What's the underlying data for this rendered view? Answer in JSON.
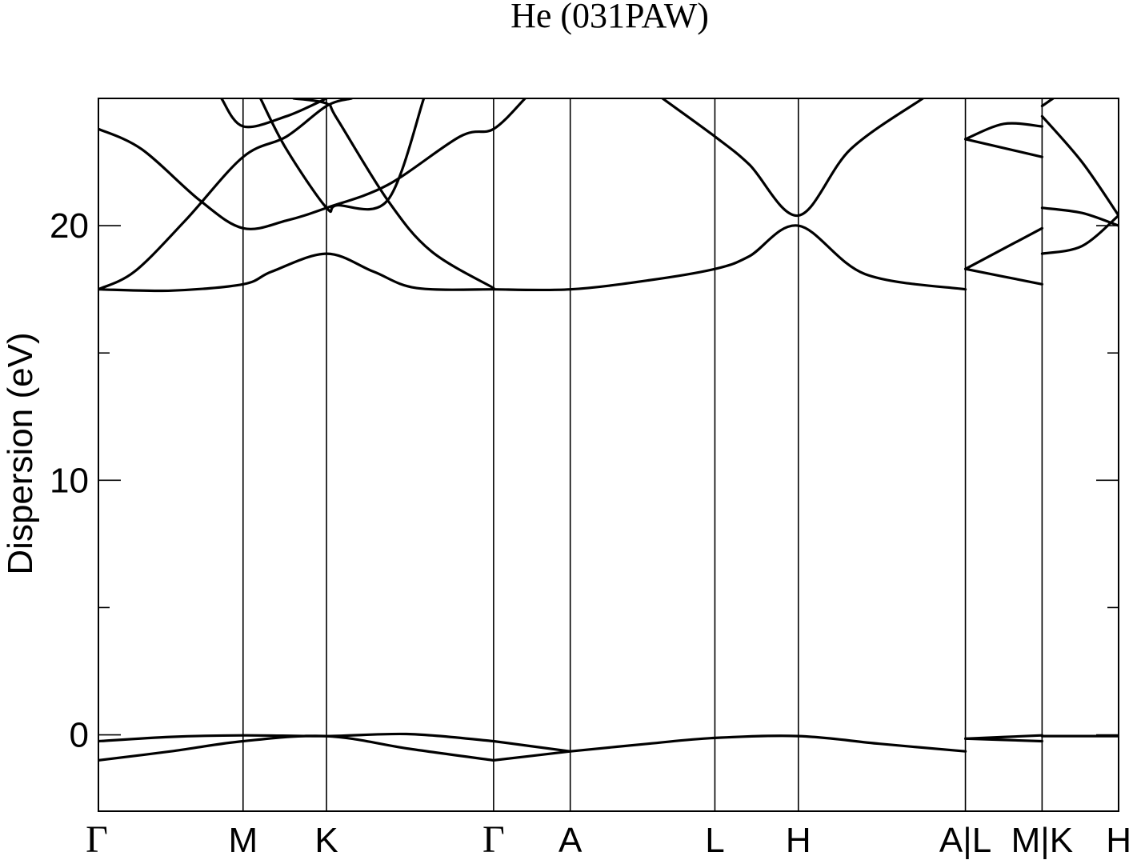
{
  "chart_data": {
    "type": "line",
    "title": "He (031PAW)",
    "ylabel": "Dispersion (eV)",
    "xlabel": "",
    "ylim": [
      -3,
      25
    ],
    "yticks_major": [
      0,
      10,
      20
    ],
    "yticks_minor": [
      5,
      15
    ],
    "grid": false,
    "kpoint_labels": [
      "Γ",
      "M",
      "K",
      "Γ",
      "A",
      "L",
      "H",
      "A|L",
      "M|K",
      "H"
    ],
    "kpoint_positions": [
      0,
      1.0,
      1.577,
      2.732,
      3.262,
      4.262,
      4.839,
      5.994,
      6.524,
      7.053
    ],
    "series": [
      {
        "segment": "Γ-M-K-Γ",
        "points": [
          [
            0,
            -1.0
          ],
          [
            0.5,
            -0.65
          ],
          [
            1.0,
            -0.25
          ],
          [
            1.577,
            -0.05
          ],
          [
            2.15,
            -0.55
          ],
          [
            2.732,
            -1.0
          ]
        ]
      },
      {
        "segment": "Γ-M-K-Γ",
        "points": [
          [
            0,
            -0.25
          ],
          [
            0.5,
            -0.08
          ],
          [
            1.0,
            -0.02
          ],
          [
            1.577,
            -0.05
          ],
          [
            2.15,
            0.03
          ],
          [
            2.732,
            -0.25
          ]
        ]
      },
      {
        "segment": "Γ-M-K-Γ",
        "points": [
          [
            0,
            17.5
          ],
          [
            0.5,
            17.45
          ],
          [
            1.0,
            17.7
          ],
          [
            1.2,
            18.2
          ],
          [
            1.577,
            18.9
          ],
          [
            1.9,
            18.2
          ],
          [
            2.2,
            17.55
          ],
          [
            2.732,
            17.5
          ]
        ]
      },
      {
        "segment": "Γ-M-K-Γ",
        "points": [
          [
            0,
            17.5
          ],
          [
            0.25,
            18.2
          ],
          [
            0.6,
            20.2
          ],
          [
            1.0,
            22.7
          ],
          [
            1.3,
            23.5
          ],
          [
            1.577,
            24.7
          ],
          [
            1.75,
            25.0
          ]
        ]
      },
      {
        "segment": "Γ-M-K-Γ",
        "points": [
          [
            0,
            23.8
          ],
          [
            0.3,
            23.0
          ],
          [
            0.7,
            21.0
          ],
          [
            1.0,
            19.9
          ],
          [
            1.3,
            20.2
          ],
          [
            1.577,
            20.7
          ],
          [
            2.0,
            21.6
          ],
          [
            2.5,
            23.5
          ],
          [
            2.732,
            23.8
          ],
          [
            2.95,
            25.0
          ]
        ]
      },
      {
        "segment": "Γ-M-K-Γ",
        "points": [
          [
            0.85,
            25.0
          ],
          [
            1.0,
            23.9
          ],
          [
            1.3,
            24.3
          ],
          [
            1.577,
            25.0
          ]
        ]
      },
      {
        "segment": "Γ-M-K-Γ",
        "points": [
          [
            1.12,
            25.0
          ],
          [
            1.3,
            23.0
          ],
          [
            1.577,
            20.7
          ],
          [
            1.65,
            20.8
          ],
          [
            2.0,
            21.0
          ],
          [
            2.25,
            25.0
          ]
        ]
      },
      {
        "segment": "Γ-M-K-Γ",
        "points": [
          [
            1.35,
            25.0
          ],
          [
            1.577,
            24.8
          ],
          [
            1.65,
            24.2
          ],
          [
            2.0,
            21.0
          ],
          [
            2.3,
            19.0
          ],
          [
            2.732,
            17.55
          ]
        ]
      },
      {
        "segment": "Γ-A-L-H-A",
        "points": [
          [
            2.732,
            -1.0
          ],
          [
            3.262,
            -0.65
          ]
        ]
      },
      {
        "segment": "Γ-A-L-H-A",
        "points": [
          [
            2.732,
            -0.25
          ],
          [
            3.262,
            -0.65
          ]
        ]
      },
      {
        "segment": "Γ-A-L-H-A",
        "points": [
          [
            2.732,
            17.5
          ],
          [
            3.262,
            17.5
          ],
          [
            3.8,
            17.85
          ],
          [
            4.262,
            18.3
          ],
          [
            4.5,
            18.8
          ],
          [
            4.839,
            20.0
          ],
          [
            5.3,
            18.1
          ],
          [
            5.994,
            17.5
          ]
        ]
      },
      {
        "segment": "Γ-A-L-H-A",
        "points": [
          [
            3.9,
            25.0
          ],
          [
            4.262,
            23.5
          ],
          [
            4.5,
            22.4
          ],
          [
            4.839,
            20.4
          ],
          [
            5.2,
            23.0
          ],
          [
            5.7,
            25.0
          ]
        ]
      },
      {
        "segment": "Γ-A-L-H-A",
        "points": [
          [
            3.262,
            -0.65
          ],
          [
            3.8,
            -0.35
          ],
          [
            4.262,
            -0.12
          ],
          [
            4.839,
            -0.05
          ],
          [
            5.4,
            -0.35
          ],
          [
            5.994,
            -0.65
          ]
        ]
      },
      {
        "segment": "L-M",
        "points": [
          [
            5.994,
            -0.15
          ],
          [
            6.524,
            -0.25
          ]
        ]
      },
      {
        "segment": "L-M",
        "points": [
          [
            5.994,
            -0.15
          ],
          [
            6.524,
            -0.02
          ]
        ]
      },
      {
        "segment": "L-M",
        "points": [
          [
            5.994,
            18.3
          ],
          [
            6.524,
            17.7
          ]
        ]
      },
      {
        "segment": "L-M",
        "points": [
          [
            5.994,
            18.3
          ],
          [
            6.524,
            19.9
          ]
        ]
      },
      {
        "segment": "L-M",
        "points": [
          [
            5.994,
            23.4
          ],
          [
            6.524,
            22.7
          ]
        ]
      },
      {
        "segment": "L-M",
        "points": [
          [
            5.994,
            23.4
          ],
          [
            6.26,
            24.0
          ],
          [
            6.524,
            23.9
          ]
        ]
      },
      {
        "segment": "K-H",
        "points": [
          [
            6.524,
            -0.05
          ],
          [
            7.053,
            -0.05
          ]
        ]
      },
      {
        "segment": "K-H",
        "points": [
          [
            6.524,
            18.9
          ],
          [
            6.8,
            19.2
          ],
          [
            7.053,
            20.4
          ]
        ]
      },
      {
        "segment": "K-H",
        "points": [
          [
            6.524,
            20.7
          ],
          [
            6.8,
            20.5
          ],
          [
            7.053,
            20.0
          ]
        ]
      },
      {
        "segment": "K-H",
        "points": [
          [
            6.524,
            24.3
          ],
          [
            6.8,
            22.5
          ],
          [
            7.053,
            20.4
          ]
        ]
      },
      {
        "segment": "K-H",
        "points": [
          [
            6.524,
            24.7
          ],
          [
            6.6,
            25.0
          ]
        ]
      }
    ]
  }
}
